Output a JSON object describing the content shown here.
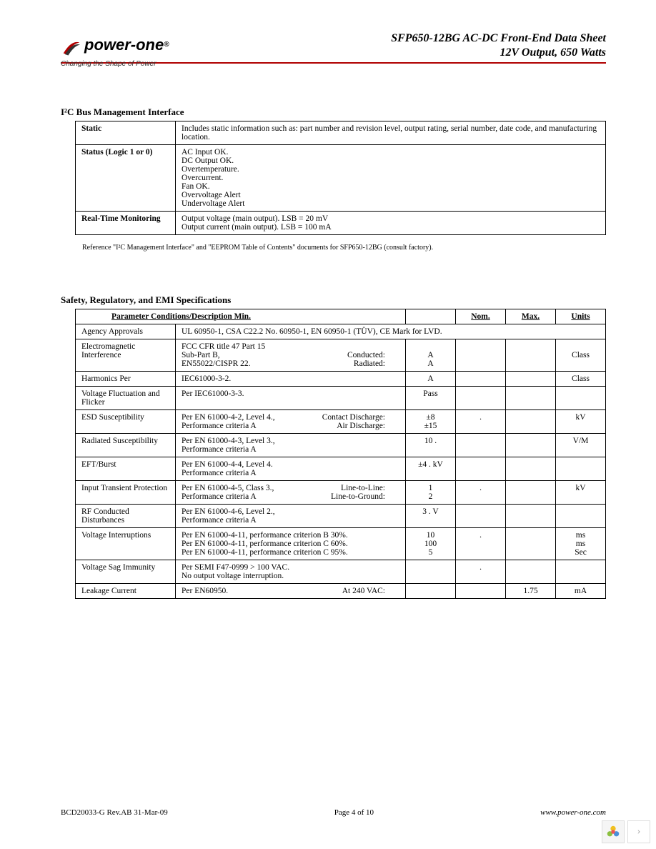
{
  "header": {
    "logo_name": "power-one",
    "logo_reg": "®",
    "tagline": "Changing the Shape of Power",
    "title_line1": "SFP650-12BG AC-DC Front-End Data Sheet",
    "title_line2": "12V Output, 650 Watts"
  },
  "section1": {
    "title": "I²C Bus Management Interface",
    "rows": [
      {
        "label": "Static",
        "desc": "Includes static information such as: part number and revision level, output rating, serial number, date code, and manufacturing location."
      },
      {
        "label": "Status  (Logic 1 or 0)",
        "desc": "AC Input OK.\nDC Output OK.\nOvertemperature.\nOvercurrent.\nFan OK.\nOvervoltage Alert\nUndervoltage Alert"
      },
      {
        "label": "Real-Time Monitoring",
        "desc": "Output voltage (main output).  LSB = 20 mV\nOutput current (main output).   LSB = 100 mA"
      }
    ],
    "footnote": "Reference \"I²C Management Interface\" and \"EEPROM Table of Contents\" documents for SFP650-12BG (consult factory)."
  },
  "section2": {
    "title": "Safety, Regulatory, and EMI Specifications",
    "headers": {
      "param": "Parameter Conditions/Description Min.",
      "nom": "Nom.",
      "max": "Max.",
      "units": "Units"
    },
    "rows": [
      {
        "label": "Agency Approvals",
        "desc": "UL 60950-1,  CSA C22.2 No. 60950-1, EN 60950-1 (TÜV), CE Mark for LVD.",
        "min": "",
        "nom": "",
        "max": "",
        "units": ""
      },
      {
        "label": "Electromagnetic Interference",
        "desc_lines": [
          {
            "l": "FCC CFR title 47 Part 15",
            "r": ""
          },
          {
            "l": "Sub-Part B,",
            "r": "Conducted:"
          },
          {
            "l": "EN55022/CISPR 22.",
            "r": "Radiated:"
          }
        ],
        "min": "\nA\nA",
        "nom": "",
        "max": "",
        "units": "\nClass"
      },
      {
        "label": "Harmonics Per",
        "desc": "      IEC61000-3-2.",
        "min": "A",
        "nom": "",
        "max": "",
        "units": "Class"
      },
      {
        "label": "Voltage Fluctuation and Flicker",
        "desc": "Per   IEC61000-3-3.",
        "min": "Pass",
        "nom": "",
        "max": "",
        "units": ""
      },
      {
        "label": "ESD Susceptibility",
        "desc_lines": [
          {
            "l": "Per EN 61000-4-2, Level 4.,",
            "r": "Contact Discharge:"
          },
          {
            "l": "Performance criteria A",
            "r": "Air Discharge:"
          }
        ],
        "min": "±8\n±15",
        "nom": ".",
        "max": "",
        "units": "kV"
      },
      {
        "label": "Radiated Susceptibility",
        "desc": "Per EN 61000-4-3, Level 3.,\nPerformance criteria A",
        "min": "10   .",
        "nom": "",
        "max": "",
        "units": "V/M"
      },
      {
        "label": "EFT/Burst",
        "desc": "Per EN 61000-4-4, Level 4.\nPerformance criteria A",
        "min": "±4   . kV",
        "nom": "",
        "max": "",
        "units": ""
      },
      {
        "label": "Input Transient Protection",
        "desc_lines": [
          {
            "l": "Per EN 61000-4-5, Class 3.,",
            "r": "Line-to-Line:"
          },
          {
            "l": " Performance criteria A",
            "r": "Line-to-Ground:          "
          }
        ],
        "min": "1\n2",
        "nom": ".",
        "max": "",
        "units": "kV"
      },
      {
        "label": "RF Conducted Disturbances",
        "desc": "Per EN 61000-4-6, Level 2.,\nPerformance criteria A",
        "min": "3   . V",
        "nom": "",
        "max": "",
        "units": ""
      },
      {
        "label": "Voltage Interruptions",
        "desc": "Per EN 61000-4-11, performance criterion B 30%.\nPer EN 61000-4-11, performance criterion C 60%.\nPer EN 61000-4-11, performance criterion C 95%.",
        "min": "10\n100\n5",
        "nom": ".",
        "max": "",
        "units": "ms\nms\nSec"
      },
      {
        "label": "Voltage Sag Immunity",
        "desc": "Per SEMI F47-0999 > 100 VAC.\nNo output voltage interruption.",
        "min": "",
        "nom": ".",
        "max": "",
        "units": ""
      },
      {
        "label": "Leakage Current",
        "desc_lines": [
          {
            "l": "Per EN60950.",
            "r": "At 240 VAC:"
          }
        ],
        "min": "",
        "nom": "",
        "max": "1.75",
        "units": "mA"
      }
    ]
  },
  "footer": {
    "left": "BCD20033-G Rev.AB 31-Mar-09",
    "center": "Page 4 of 10",
    "right": "www.power-one.com"
  },
  "colors": {
    "rule": "#b00000",
    "border": "#000000",
    "text": "#000000",
    "bg": "#ffffff"
  }
}
